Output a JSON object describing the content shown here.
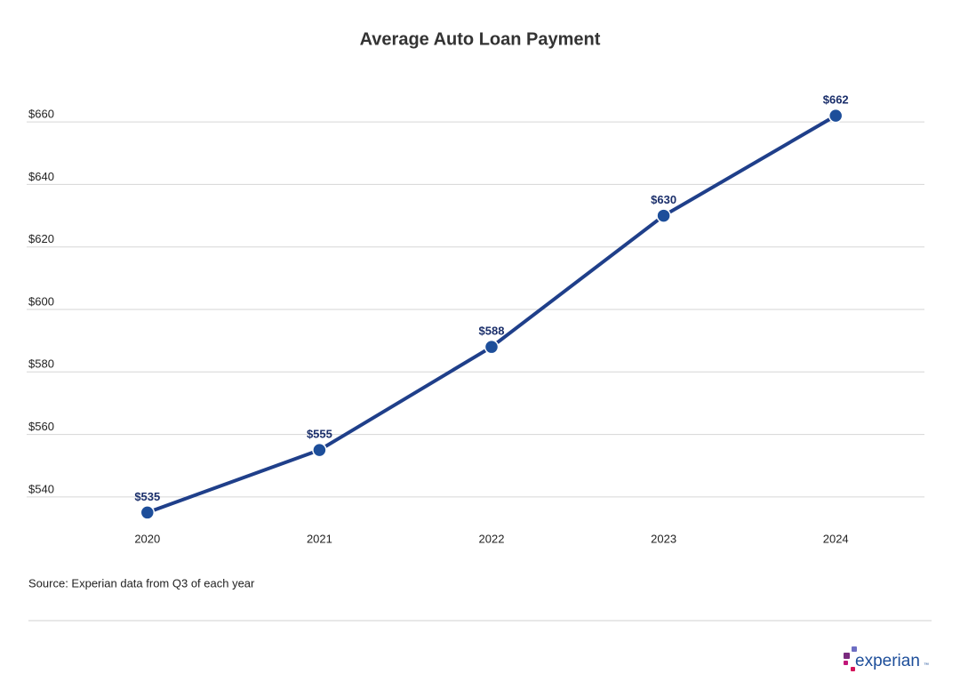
{
  "chart_data": {
    "type": "line",
    "title": "Average Auto Loan Payment",
    "categories": [
      "2020",
      "2021",
      "2022",
      "2023",
      "2024"
    ],
    "values": [
      535,
      555,
      588,
      630,
      662
    ],
    "value_labels": [
      "$535",
      "$555",
      "$588",
      "$630",
      "$662"
    ],
    "color": "#1f3f8a",
    "ylim": [
      530,
      670
    ],
    "yticks": [
      {
        "value": 540,
        "label": "$540"
      },
      {
        "value": 560,
        "label": "$560"
      },
      {
        "value": 580,
        "label": "$580"
      },
      {
        "value": 600,
        "label": "$600"
      },
      {
        "value": 620,
        "label": "$620"
      },
      {
        "value": 640,
        "label": "$640"
      },
      {
        "value": 660,
        "label": "$660"
      }
    ],
    "grid": true,
    "source": "Source: Experian data from Q3 of each year"
  },
  "logo": {
    "text": "experian",
    "mark": "™"
  }
}
